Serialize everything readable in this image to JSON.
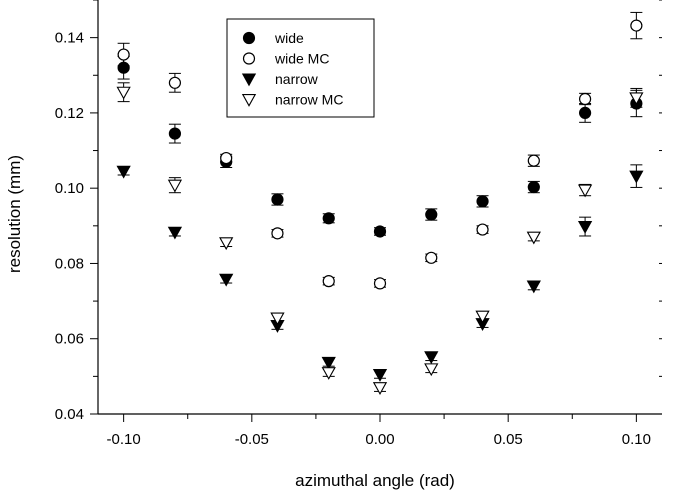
{
  "chart_data": {
    "type": "scatter",
    "title": "",
    "xlabel": "azimuthal angle (rad)",
    "ylabel": "resolution (mm)",
    "xlim": [
      -0.11,
      0.11
    ],
    "ylim": [
      0.04,
      0.15
    ],
    "xticks": [
      -0.1,
      -0.05,
      0.0,
      0.05,
      0.1
    ],
    "xtick_labels": [
      "-0.10",
      "-0.05",
      "0.00",
      "0.05",
      "0.10"
    ],
    "yticks": [
      0.04,
      0.06,
      0.08,
      0.1,
      0.12,
      0.14
    ],
    "ytick_labels": [
      "0.04",
      "0.06",
      "0.08",
      "0.10",
      "0.12",
      "0.14"
    ],
    "grid": false,
    "legend_position": "top-left-center",
    "x": [
      -0.1,
      -0.08,
      -0.06,
      -0.04,
      -0.02,
      0.0,
      0.02,
      0.04,
      0.06,
      0.08,
      0.1
    ],
    "series": [
      {
        "name": "wide",
        "marker": "filled-circle",
        "y": [
          0.132,
          0.1145,
          0.107,
          0.097,
          0.092,
          0.0885,
          0.093,
          0.0965,
          0.1003,
          0.12,
          0.1225
        ],
        "err": [
          0.003,
          0.0025,
          0.0015,
          0.0015,
          0.0012,
          0.001,
          0.0015,
          0.0015,
          0.0015,
          0.0025,
          0.0035
        ]
      },
      {
        "name": "wide MC",
        "marker": "open-circle",
        "y": [
          0.1355,
          0.128,
          0.108,
          0.088,
          0.0753,
          0.0747,
          0.0815,
          0.089,
          0.1073,
          0.1237,
          0.1432
        ],
        "err": [
          0.003,
          0.0025,
          0.001,
          0.001,
          0.001,
          0.001,
          0.001,
          0.001,
          0.0015,
          0.0015,
          0.0035
        ]
      },
      {
        "name": "narrow",
        "marker": "filled-triangle-down",
        "y": [
          0.1045,
          0.0883,
          0.0758,
          0.0635,
          0.0537,
          0.0505,
          0.0552,
          0.064,
          0.074,
          0.0898,
          0.1032
        ],
        "err": [
          0.001,
          0.001,
          0.001,
          0.001,
          0.001,
          0.001,
          0.001,
          0.001,
          0.001,
          0.0025,
          0.003
        ]
      },
      {
        "name": "narrow MC",
        "marker": "open-triangle-down",
        "y": [
          0.1255,
          0.1008,
          0.0855,
          0.0655,
          0.051,
          0.047,
          0.052,
          0.066,
          0.087,
          0.0995,
          0.124
        ],
        "err": [
          0.0025,
          0.002,
          0.001,
          0.001,
          0.001,
          0.001,
          0.001,
          0.001,
          0.001,
          0.0015,
          0.0025
        ]
      }
    ]
  }
}
